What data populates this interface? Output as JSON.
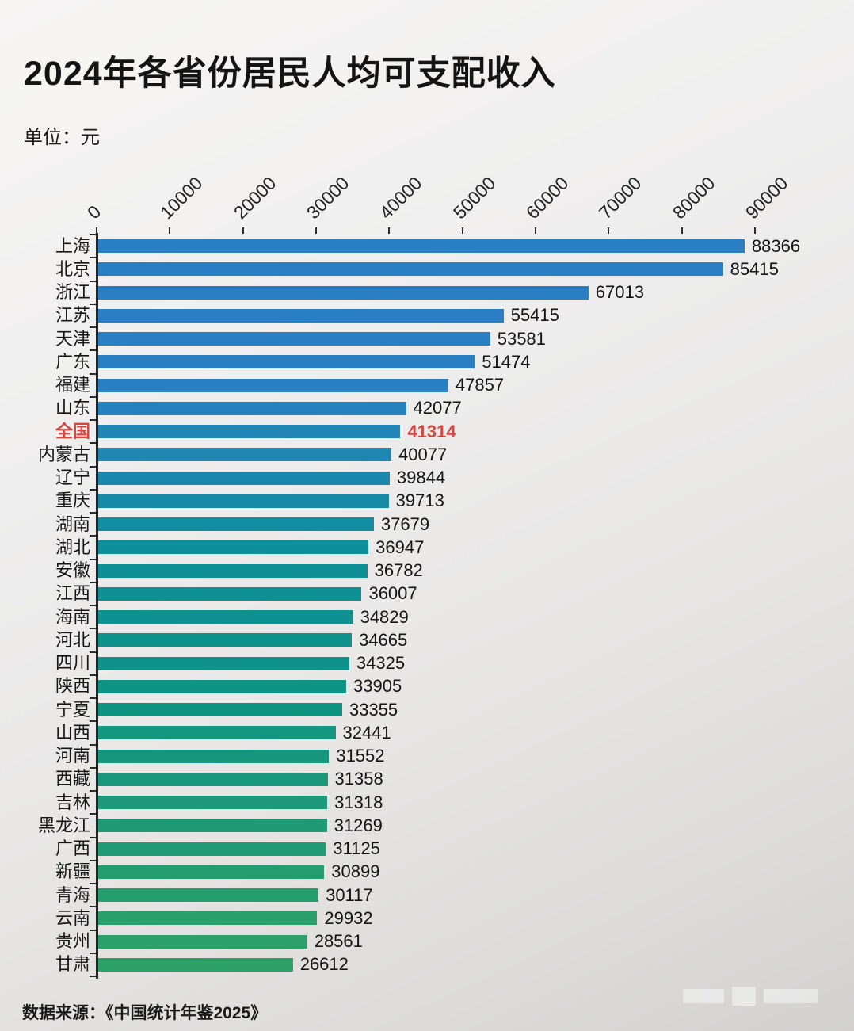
{
  "page": {
    "title": "2024年各省份居民人均可支配收入",
    "unit_label": "单位：元",
    "source": "数据来源：《中国统计年鉴2025》"
  },
  "chart_data": {
    "type": "bar",
    "orientation": "horizontal",
    "title": "2024年各省份居民人均可支配收入",
    "unit": "元",
    "xlabel": "",
    "ylabel": "",
    "xlim": [
      0,
      90000
    ],
    "x_ticks": [
      0,
      10000,
      20000,
      30000,
      40000,
      50000,
      60000,
      70000,
      80000,
      90000
    ],
    "grid": false,
    "legend": "none",
    "categories": [
      "上海",
      "北京",
      "浙江",
      "江苏",
      "天津",
      "广东",
      "福建",
      "山东",
      "全国",
      "内蒙古",
      "辽宁",
      "重庆",
      "湖南",
      "湖北",
      "安徽",
      "江西",
      "海南",
      "河北",
      "四川",
      "陕西",
      "宁夏",
      "山西",
      "河南",
      "西藏",
      "吉林",
      "黑龙江",
      "广西",
      "新疆",
      "青海",
      "云南",
      "贵州",
      "甘肃"
    ],
    "values": [
      88366,
      85415,
      67013,
      55415,
      53581,
      51474,
      47857,
      42077,
      41314,
      40077,
      39844,
      39713,
      37679,
      36947,
      36782,
      36007,
      34829,
      34665,
      34325,
      33905,
      33355,
      32441,
      31552,
      31358,
      31318,
      31269,
      31125,
      30899,
      30117,
      29932,
      28561,
      26612
    ],
    "highlight": {
      "category": "全国",
      "color": "#d9453f"
    },
    "bar_color_stops": [
      [
        0.0,
        "#2A7EC4"
      ],
      [
        0.18,
        "#2A7EC4"
      ],
      [
        0.42,
        "#0F8F9B"
      ],
      [
        0.62,
        "#0E9384"
      ],
      [
        1.0,
        "#2EA166"
      ]
    ],
    "source": "数据来源：《中国统计年鉴2025》"
  }
}
